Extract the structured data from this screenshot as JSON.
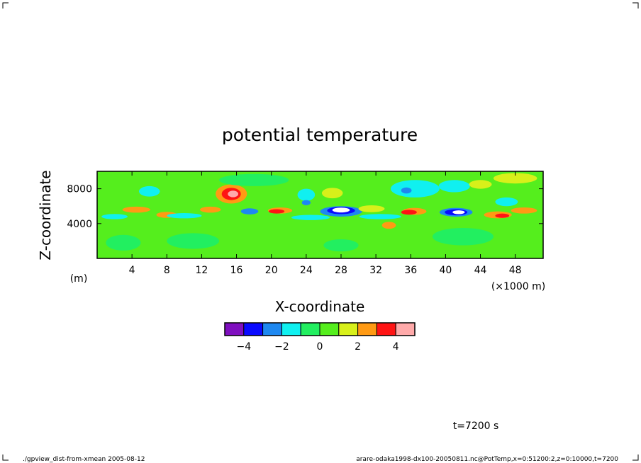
{
  "chart_data": {
    "type": "heatmap",
    "title": "potential temperature",
    "xlabel": "X-coordinate",
    "ylabel": "Z-coordinate",
    "x_unit": "(×1000 m)",
    "y_unit": "(m)",
    "xlim": [
      0,
      51.2
    ],
    "ylim": [
      0,
      10000
    ],
    "x_ticks": [
      4,
      8,
      12,
      16,
      20,
      24,
      28,
      32,
      36,
      40,
      44,
      48
    ],
    "y_ticks": [
      4000,
      8000
    ],
    "colorbar": {
      "levels": [
        -5,
        -4,
        -3,
        -2,
        -1,
        0,
        1,
        2,
        3,
        4,
        5
      ],
      "labels": [
        -4,
        -2,
        0,
        2,
        4
      ],
      "colors": [
        "#7f0fbf",
        "#0a0aff",
        "#1e88f0",
        "#10f0f0",
        "#22ef60",
        "#55ee1d",
        "#d8f01a",
        "#ff9a14",
        "#ff1414",
        "#ffaaaa"
      ]
    },
    "background_value": 0.5,
    "features": [
      {
        "x": 15.4,
        "z": 7400,
        "rx": 1.8,
        "rz": 1100,
        "value": 2.5
      },
      {
        "x": 15.4,
        "z": 7400,
        "rx": 1.1,
        "rz": 700,
        "value": 3.5
      },
      {
        "x": 15.6,
        "z": 7400,
        "rx": 0.6,
        "rz": 380,
        "value": 4.5
      },
      {
        "x": 6.0,
        "z": 7700,
        "rx": 1.2,
        "rz": 600,
        "value": -1.5
      },
      {
        "x": 36.5,
        "z": 8000,
        "rx": 2.8,
        "rz": 1000,
        "value": -1.5
      },
      {
        "x": 35.5,
        "z": 7800,
        "rx": 0.6,
        "rz": 350,
        "value": -2.5
      },
      {
        "x": 41.0,
        "z": 8300,
        "rx": 1.8,
        "rz": 700,
        "value": -1.5
      },
      {
        "x": 24.0,
        "z": 7300,
        "rx": 1.0,
        "rz": 700,
        "value": -1.5
      },
      {
        "x": 28.0,
        "z": 5400,
        "rx": 2.4,
        "rz": 600,
        "value": -2.5
      },
      {
        "x": 28.0,
        "z": 5500,
        "rx": 1.6,
        "rz": 420,
        "value": -3.5
      },
      {
        "x": 28.0,
        "z": 5550,
        "rx": 1.0,
        "rz": 280,
        "value": -5.5
      },
      {
        "x": 41.2,
        "z": 5300,
        "rx": 1.9,
        "rz": 500,
        "value": -2.5
      },
      {
        "x": 41.2,
        "z": 5300,
        "rx": 1.3,
        "rz": 350,
        "value": -3.5
      },
      {
        "x": 41.5,
        "z": 5300,
        "rx": 0.7,
        "rz": 220,
        "value": -5.5
      },
      {
        "x": 17.5,
        "z": 5400,
        "rx": 1.0,
        "rz": 350,
        "value": -2.5
      },
      {
        "x": 21.0,
        "z": 5500,
        "rx": 1.4,
        "rz": 350,
        "value": 2.5
      },
      {
        "x": 20.6,
        "z": 5400,
        "rx": 0.9,
        "rz": 250,
        "value": 3.5
      },
      {
        "x": 36.4,
        "z": 5400,
        "rx": 1.4,
        "rz": 400,
        "value": 2.5
      },
      {
        "x": 35.8,
        "z": 5300,
        "rx": 0.9,
        "rz": 280,
        "value": 3.5
      },
      {
        "x": 46.0,
        "z": 5000,
        "rx": 1.6,
        "rz": 400,
        "value": 2.5
      },
      {
        "x": 46.5,
        "z": 4900,
        "rx": 0.8,
        "rz": 250,
        "value": 3.5
      },
      {
        "x": 4.5,
        "z": 5600,
        "rx": 1.6,
        "rz": 350,
        "value": 2.5
      },
      {
        "x": 8.0,
        "z": 5000,
        "rx": 1.2,
        "rz": 350,
        "value": 2.5
      },
      {
        "x": 13.0,
        "z": 5600,
        "rx": 1.2,
        "rz": 350,
        "value": 2.5
      },
      {
        "x": 31.5,
        "z": 5700,
        "rx": 1.5,
        "rz": 400,
        "value": 1.5
      },
      {
        "x": 49.0,
        "z": 5500,
        "rx": 1.5,
        "rz": 350,
        "value": 2.5
      },
      {
        "x": 33.5,
        "z": 3800,
        "rx": 0.8,
        "rz": 400,
        "value": 2.5
      },
      {
        "x": 10.0,
        "z": 4900,
        "rx": 2.0,
        "rz": 300,
        "value": -1.5
      },
      {
        "x": 24.5,
        "z": 4700,
        "rx": 2.2,
        "rz": 300,
        "value": -1.5
      },
      {
        "x": 32.5,
        "z": 4800,
        "rx": 2.4,
        "rz": 300,
        "value": -1.5
      },
      {
        "x": 2.0,
        "z": 4800,
        "rx": 1.5,
        "rz": 300,
        "value": -1.5
      },
      {
        "x": 47.0,
        "z": 6500,
        "rx": 1.3,
        "rz": 500,
        "value": -1.5
      },
      {
        "x": 24.0,
        "z": 6400,
        "rx": 0.5,
        "rz": 300,
        "value": -2.5
      },
      {
        "x": 44.0,
        "z": 8500,
        "rx": 1.3,
        "rz": 500,
        "value": 1.5
      },
      {
        "x": 27.0,
        "z": 7500,
        "rx": 1.2,
        "rz": 600,
        "value": 1.5
      },
      {
        "x": 11.0,
        "z": 2000,
        "rx": 3.0,
        "rz": 900,
        "value": -0.5
      },
      {
        "x": 28.0,
        "z": 1500,
        "rx": 2.0,
        "rz": 700,
        "value": -0.5
      },
      {
        "x": 42.0,
        "z": 2500,
        "rx": 3.5,
        "rz": 1000,
        "value": -0.5
      },
      {
        "x": 3.0,
        "z": 1800,
        "rx": 2.0,
        "rz": 900,
        "value": -0.5
      },
      {
        "x": 18.0,
        "z": 9000,
        "rx": 4.0,
        "rz": 700,
        "value": -0.5
      },
      {
        "x": 48.0,
        "z": 9200,
        "rx": 2.5,
        "rz": 600,
        "value": 1.5
      }
    ]
  },
  "footer": {
    "time": "t=7200 s",
    "left_note": "./gpview_dist-from-xmean  2005-08-12",
    "right_note": "arare-odaka1998-dx100-20050811.nc@PotTemp,x=0:51200:2,z=0:10000,t=7200"
  }
}
